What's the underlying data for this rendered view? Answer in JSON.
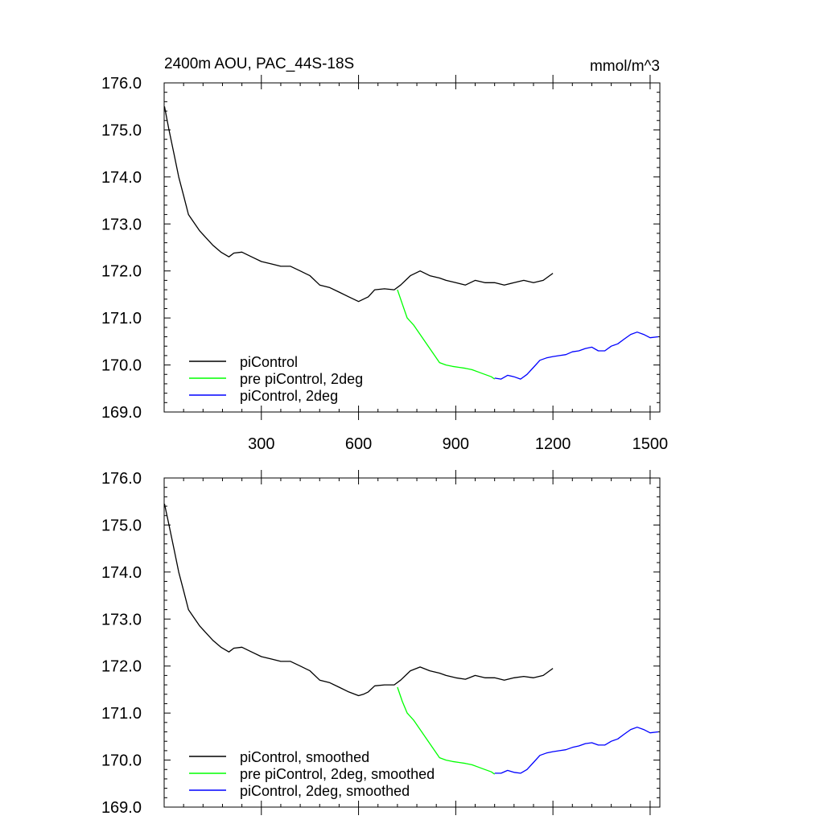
{
  "chart_data": [
    {
      "type": "line",
      "title": "2400m AOU, PAC_44S-18S",
      "units": "mmol/m^3",
      "xlim": [
        0,
        1530
      ],
      "ylim": [
        169.0,
        176.0
      ],
      "x_ticks": [
        300,
        600,
        900,
        1200,
        1500
      ],
      "x_tick_labels": [
        "300",
        "600",
        "900",
        "1200",
        "1500"
      ],
      "y_ticks": [
        169,
        170,
        171,
        172,
        173,
        174,
        175,
        176
      ],
      "y_tick_labels": [
        "169.0",
        "170.0",
        "171.0",
        "172.0",
        "173.0",
        "174.0",
        "175.0",
        "176.0"
      ],
      "legend_position": "bottom-left",
      "series": [
        {
          "name": "piControl",
          "color": "#000000",
          "x": [
            1,
            15,
            30,
            45,
            60,
            75,
            90,
            110,
            130,
            150,
            175,
            200,
            215,
            240,
            270,
            300,
            330,
            360,
            390,
            420,
            450,
            480,
            510,
            540,
            570,
            600,
            615,
            630,
            650,
            680,
            710,
            730,
            760,
            790,
            820,
            850,
            870,
            900,
            930,
            960,
            990,
            1020,
            1050,
            1080,
            1110,
            1140,
            1170,
            1200
          ],
          "y": [
            175.5,
            175.0,
            174.5,
            174.0,
            173.6,
            173.2,
            173.05,
            172.85,
            172.7,
            172.55,
            172.4,
            172.3,
            172.38,
            172.4,
            172.3,
            172.2,
            172.15,
            172.1,
            172.1,
            172.0,
            171.9,
            171.7,
            171.65,
            171.55,
            171.45,
            171.35,
            171.4,
            171.45,
            171.6,
            171.62,
            171.6,
            171.7,
            171.9,
            172.0,
            171.9,
            171.85,
            171.8,
            171.75,
            171.7,
            171.8,
            171.75,
            171.75,
            171.7,
            171.75,
            171.8,
            171.75,
            171.8,
            171.95
          ]
        },
        {
          "name": "pre piControl, 2deg",
          "color": "#00ff00",
          "x": [
            720,
            735,
            750,
            770,
            790,
            810,
            830,
            850,
            870,
            890,
            910,
            930,
            950,
            970,
            990,
            1010,
            1020
          ],
          "y": [
            171.6,
            171.3,
            171.0,
            170.85,
            170.65,
            170.45,
            170.25,
            170.05,
            170.0,
            169.97,
            169.95,
            169.93,
            169.9,
            169.85,
            169.8,
            169.75,
            169.7
          ]
        },
        {
          "name": "piControl, 2deg",
          "color": "#0000ff",
          "x": [
            1020,
            1040,
            1060,
            1080,
            1100,
            1120,
            1140,
            1160,
            1180,
            1200,
            1220,
            1240,
            1260,
            1280,
            1300,
            1320,
            1340,
            1360,
            1380,
            1400,
            1420,
            1440,
            1460,
            1480,
            1500,
            1525
          ],
          "y": [
            169.72,
            169.7,
            169.78,
            169.75,
            169.7,
            169.8,
            169.95,
            170.1,
            170.15,
            170.18,
            170.2,
            170.22,
            170.28,
            170.3,
            170.35,
            170.38,
            170.3,
            170.3,
            170.4,
            170.45,
            170.55,
            170.65,
            170.7,
            170.65,
            170.58,
            170.6
          ]
        }
      ]
    },
    {
      "type": "line",
      "title": "",
      "units": "",
      "xlim": [
        0,
        1530
      ],
      "ylim": [
        169.0,
        176.0
      ],
      "x_ticks": [
        300,
        600,
        900,
        1200,
        1500
      ],
      "x_tick_labels": [],
      "y_ticks": [
        169,
        170,
        171,
        172,
        173,
        174,
        175,
        176
      ],
      "y_tick_labels": [
        "169.0",
        "170.0",
        "171.0",
        "172.0",
        "173.0",
        "174.0",
        "175.0",
        "176.0"
      ],
      "legend_position": "bottom-left",
      "series": [
        {
          "name": "piControl, smoothed",
          "color": "#000000",
          "x": [
            1,
            15,
            30,
            45,
            60,
            75,
            90,
            110,
            130,
            150,
            175,
            200,
            215,
            240,
            270,
            300,
            330,
            360,
            390,
            420,
            450,
            480,
            510,
            540,
            570,
            600,
            615,
            630,
            650,
            680,
            710,
            730,
            760,
            790,
            820,
            850,
            870,
            900,
            930,
            960,
            990,
            1020,
            1050,
            1080,
            1110,
            1140,
            1170,
            1200
          ],
          "y": [
            175.45,
            175.0,
            174.5,
            174.0,
            173.6,
            173.2,
            173.05,
            172.85,
            172.7,
            172.55,
            172.4,
            172.3,
            172.38,
            172.4,
            172.3,
            172.2,
            172.15,
            172.1,
            172.1,
            172.0,
            171.9,
            171.7,
            171.65,
            171.55,
            171.45,
            171.37,
            171.4,
            171.45,
            171.58,
            171.6,
            171.6,
            171.7,
            171.9,
            171.98,
            171.9,
            171.85,
            171.8,
            171.75,
            171.72,
            171.8,
            171.75,
            171.75,
            171.7,
            171.75,
            171.78,
            171.75,
            171.8,
            171.95
          ]
        },
        {
          "name": "pre piControl, 2deg, smoothed",
          "color": "#00ff00",
          "x": [
            720,
            735,
            750,
            770,
            790,
            810,
            830,
            850,
            870,
            890,
            910,
            930,
            950,
            970,
            990,
            1010,
            1020
          ],
          "y": [
            171.55,
            171.25,
            171.0,
            170.85,
            170.65,
            170.45,
            170.25,
            170.05,
            170.0,
            169.97,
            169.95,
            169.93,
            169.9,
            169.85,
            169.8,
            169.75,
            169.7
          ]
        },
        {
          "name": "piControl, 2deg, smoothed",
          "color": "#0000ff",
          "x": [
            1020,
            1040,
            1060,
            1080,
            1100,
            1120,
            1140,
            1160,
            1180,
            1200,
            1220,
            1240,
            1260,
            1280,
            1300,
            1320,
            1340,
            1360,
            1380,
            1400,
            1420,
            1440,
            1460,
            1480,
            1500,
            1525
          ],
          "y": [
            169.72,
            169.72,
            169.78,
            169.74,
            169.72,
            169.8,
            169.95,
            170.1,
            170.15,
            170.18,
            170.2,
            170.22,
            170.27,
            170.3,
            170.35,
            170.37,
            170.32,
            170.32,
            170.4,
            170.45,
            170.55,
            170.65,
            170.7,
            170.65,
            170.58,
            170.6
          ]
        }
      ]
    }
  ]
}
